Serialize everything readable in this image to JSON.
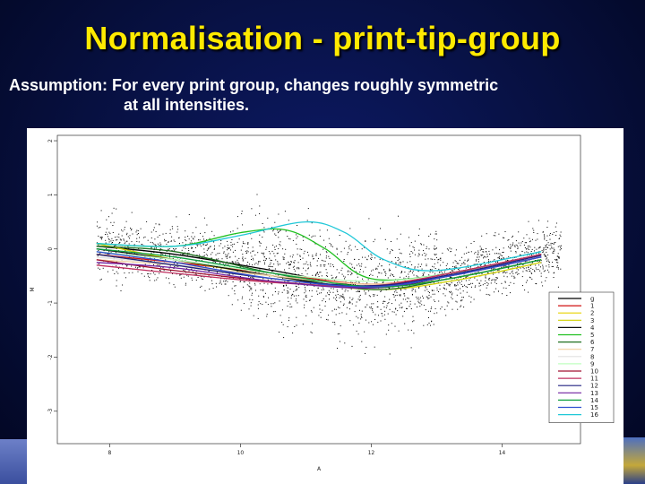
{
  "slide": {
    "title": "Normalisation - print-tip-group",
    "assumption_line1": "Assumption: For every print group, changes roughly symmetric",
    "assumption_line2": "at all intensities."
  },
  "chart_data": {
    "type": "scatter",
    "xlabel": "A",
    "ylabel": "M",
    "xlim": [
      7.2,
      15.2
    ],
    "ylim": [
      -3.6,
      2.1
    ],
    "xticks": [
      8,
      10,
      12,
      14
    ],
    "yticks": [
      2,
      1,
      0,
      -1,
      -2,
      -3
    ],
    "x_tick_labels": [
      "8",
      "10",
      "12",
      "14"
    ],
    "y_tick_labels": [
      "2",
      "1",
      "0",
      "-1",
      "-2",
      "-3"
    ],
    "legend_position": "bottom-right",
    "scatter_color": "#000000",
    "series": [
      {
        "name": "g",
        "color": "#000000",
        "points": [
          [
            7.8,
            0.05
          ],
          [
            9,
            -0.1
          ],
          [
            10.5,
            -0.4
          ],
          [
            12,
            -0.7
          ],
          [
            13.2,
            -0.5
          ],
          [
            14.6,
            -0.1
          ]
        ]
      },
      {
        "name": "1",
        "color": "#d01010",
        "points": [
          [
            7.8,
            -0.1
          ],
          [
            9,
            -0.25
          ],
          [
            10.5,
            -0.45
          ],
          [
            12,
            -0.65
          ],
          [
            13.2,
            -0.45
          ],
          [
            14.6,
            -0.1
          ]
        ]
      },
      {
        "name": "2",
        "color": "#e8d200",
        "points": [
          [
            7.8,
            -0.1
          ],
          [
            9,
            -0.3
          ],
          [
            10.5,
            -0.55
          ],
          [
            12,
            -0.7
          ],
          [
            13.2,
            -0.55
          ],
          [
            14.6,
            -0.2
          ]
        ]
      },
      {
        "name": "3",
        "color": "#d0d000",
        "points": [
          [
            7.8,
            0.1
          ],
          [
            9,
            -0.2
          ],
          [
            10.5,
            -0.5
          ],
          [
            12,
            -0.75
          ],
          [
            13.2,
            -0.6
          ],
          [
            14.6,
            -0.25
          ]
        ]
      },
      {
        "name": "4",
        "color": "#101010",
        "points": [
          [
            7.8,
            0
          ],
          [
            9,
            -0.2
          ],
          [
            10.5,
            -0.5
          ],
          [
            12,
            -0.72
          ],
          [
            13.2,
            -0.5
          ],
          [
            14.6,
            -0.15
          ]
        ]
      },
      {
        "name": "5",
        "color": "#20c020",
        "points": [
          [
            7.8,
            0.1
          ],
          [
            9,
            0.05
          ],
          [
            10,
            0.3
          ],
          [
            10.7,
            0.35
          ],
          [
            11.3,
            0
          ],
          [
            12,
            -0.55
          ],
          [
            13.2,
            -0.45
          ],
          [
            14.6,
            -0.1
          ]
        ]
      },
      {
        "name": "6",
        "color": "#207020",
        "points": [
          [
            7.8,
            0.05
          ],
          [
            9,
            -0.05
          ],
          [
            10.5,
            -0.45
          ],
          [
            12,
            -0.75
          ],
          [
            13.2,
            -0.55
          ],
          [
            14.6,
            -0.2
          ]
        ]
      },
      {
        "name": "7",
        "color": "#f0d0a0",
        "points": [
          [
            7.8,
            -0.2
          ],
          [
            9,
            -0.3
          ],
          [
            10.5,
            -0.5
          ],
          [
            12,
            -0.65
          ],
          [
            13.2,
            -0.5
          ],
          [
            14.6,
            -0.15
          ]
        ]
      },
      {
        "name": "8",
        "color": "#e0e0e0",
        "points": [
          [
            7.8,
            -0.15
          ],
          [
            9,
            -0.3
          ],
          [
            10.5,
            -0.55
          ],
          [
            12,
            -0.7
          ],
          [
            13.2,
            -0.5
          ],
          [
            14.6,
            -0.15
          ]
        ]
      },
      {
        "name": "9",
        "color": "#c0ffc0",
        "points": [
          [
            7.8,
            -0.05
          ],
          [
            9,
            -0.2
          ],
          [
            10.5,
            -0.45
          ],
          [
            12,
            -0.6
          ],
          [
            13.2,
            -0.45
          ],
          [
            14.6,
            -0.1
          ]
        ]
      },
      {
        "name": "10",
        "color": "#a01030",
        "points": [
          [
            7.8,
            -0.2
          ],
          [
            9,
            -0.4
          ],
          [
            10.5,
            -0.6
          ],
          [
            12,
            -0.7
          ],
          [
            13.2,
            -0.45
          ],
          [
            14.6,
            -0.1
          ]
        ]
      },
      {
        "name": "11",
        "color": "#c03060",
        "points": [
          [
            7.8,
            -0.3
          ],
          [
            9,
            -0.45
          ],
          [
            10.5,
            -0.62
          ],
          [
            12,
            -0.68
          ],
          [
            13.2,
            -0.45
          ],
          [
            14.6,
            -0.1
          ]
        ]
      },
      {
        "name": "12",
        "color": "#202080",
        "points": [
          [
            7.8,
            -0.1
          ],
          [
            9,
            -0.3
          ],
          [
            10.5,
            -0.55
          ],
          [
            12,
            -0.68
          ],
          [
            13.2,
            -0.48
          ],
          [
            14.6,
            -0.12
          ]
        ]
      },
      {
        "name": "13",
        "color": "#7020a0",
        "points": [
          [
            7.8,
            -0.25
          ],
          [
            9,
            -0.35
          ],
          [
            10.5,
            -0.6
          ],
          [
            12,
            -0.72
          ],
          [
            13.2,
            -0.5
          ],
          [
            14.6,
            -0.15
          ]
        ]
      },
      {
        "name": "14",
        "color": "#10a040",
        "points": [
          [
            7.8,
            0
          ],
          [
            9,
            -0.15
          ],
          [
            10.5,
            -0.45
          ],
          [
            12,
            -0.7
          ],
          [
            13.2,
            -0.55
          ],
          [
            14.6,
            -0.2
          ]
        ]
      },
      {
        "name": "15",
        "color": "#3050d0",
        "points": [
          [
            7.8,
            -0.05
          ],
          [
            9,
            -0.25
          ],
          [
            10.5,
            -0.55
          ],
          [
            12,
            -0.7
          ],
          [
            13.2,
            -0.5
          ],
          [
            14.6,
            -0.15
          ]
        ]
      },
      {
        "name": "16",
        "color": "#20c8d8",
        "points": [
          [
            7.8,
            0.1
          ],
          [
            9,
            0.05
          ],
          [
            10,
            0.25
          ],
          [
            11,
            0.5
          ],
          [
            11.6,
            0.3
          ],
          [
            12.2,
            -0.2
          ],
          [
            13,
            -0.4
          ],
          [
            14.6,
            -0.05
          ]
        ]
      }
    ]
  }
}
